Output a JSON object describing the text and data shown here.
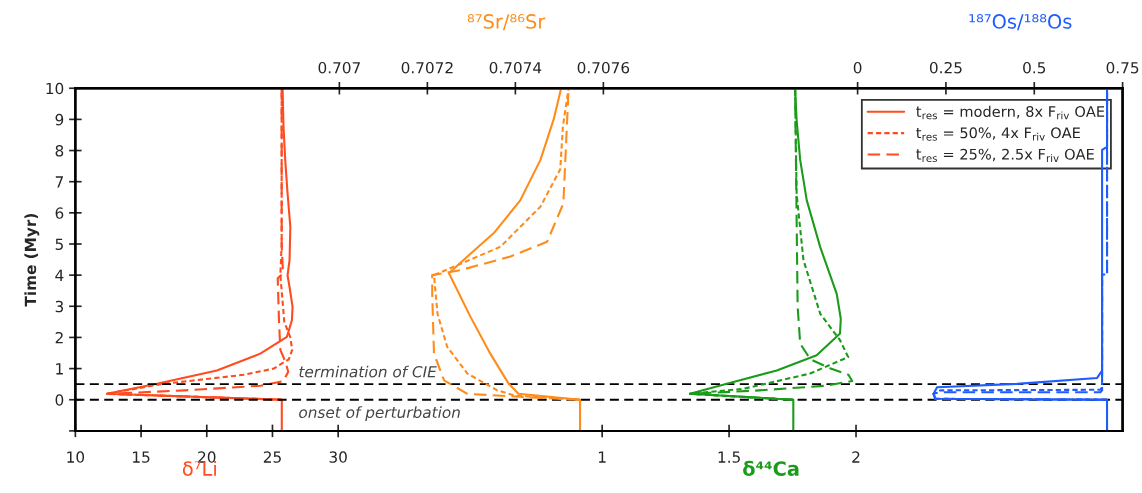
{
  "chart_data": [
    {
      "type": "line",
      "ylabel": "Time (Myr)",
      "ylim": [
        -1,
        10
      ],
      "yticks": [
        {
          "value": -1,
          "label": null
        },
        0,
        1,
        2,
        3,
        4,
        5,
        6,
        7,
        8,
        9,
        10
      ],
      "xlabel": "δ⁷Li",
      "xlim": [
        10,
        89.7
      ],
      "xticks": [
        10,
        15,
        20,
        25,
        30
      ],
      "x2label": "⁸⁷Sr/⁸⁶Sr",
      "x2lim": [
        0.7064,
        0.70878
      ],
      "x2ticks": [
        0.707,
        0.7072,
        0.7074,
        0.7076
      ],
      "grid": false,
      "legend": "top right",
      "ref_lines": [
        {
          "axis": "y",
          "value": 0,
          "label": "onset of perturbation",
          "color": "#000000",
          "line_style": "dashed"
        },
        {
          "axis": "y",
          "value": 0.5,
          "label": "termination of CIE",
          "color": "#000000",
          "line_style": "dashed"
        }
      ],
      "series": [
        {
          "name": "t$_{res}$ = modern, 8x F$_{riv}$ OAE",
          "color": "#ff4b1f",
          "line_style": "solid",
          "x": [
            25.71,
            25.71,
            12.41,
            16.21,
            20.77,
            24.07,
            26.1,
            26.48,
            26.53,
            26.3,
            26.15,
            26.3,
            26.36,
            26.15,
            25.97,
            25.84,
            25.77
          ],
          "values": [
            -1,
            0,
            0.19,
            0.51,
            0.94,
            1.48,
            2.02,
            2.55,
            2.98,
            3.62,
            3.99,
            4.48,
            5.55,
            6.62,
            7.7,
            8.77,
            10
          ]
        },
        {
          "name": "t$_{res}$ = 50%, 4x F$_{riv}$ OAE",
          "color": "#ff4b1f",
          "line_style": "dotted",
          "x": [
            25.71,
            12.41,
            16.5,
            22.8,
            25.1,
            26.25,
            26.5,
            26.36,
            25.9,
            25.7,
            25.6,
            25.7,
            25.7,
            25.7
          ],
          "values": [
            0,
            0.19,
            0.5,
            0.8,
            1.0,
            1.3,
            1.6,
            2.0,
            2.5,
            3.5,
            4.0,
            5,
            7,
            10
          ]
        },
        {
          "name": "t$_{res}$ = 25%, 2.5x F$_{riv}$ OAE",
          "color": "#ff4b1f",
          "line_style": "dashed",
          "x": [
            25.71,
            12.41,
            18.3,
            24.1,
            25.84,
            26.2,
            26.0,
            25.6,
            25.5,
            25.4,
            25.8,
            25.7,
            25.7
          ],
          "values": [
            0,
            0.19,
            0.3,
            0.45,
            0.6,
            0.9,
            1.2,
            1.6,
            2.5,
            3.9,
            4.05,
            5,
            10
          ]
        },
        {
          "axis": "x2",
          "color": "#ff8c1a",
          "line_style": "solid",
          "x": [
            0.707547,
            0.707547,
            0.707407,
            0.707385,
            0.707343,
            0.707298,
            0.707249,
            0.707291,
            0.707351,
            0.707411,
            0.707457,
            0.707487,
            0.707504
          ],
          "values": [
            -1,
            0,
            0.19,
            0.51,
            1.48,
            2.66,
            4.06,
            4.6,
            5.35,
            6.4,
            7.7,
            9,
            10
          ]
        },
        {
          "axis": "x2",
          "color": "#ff8c1a",
          "line_style": "dotted",
          "x": [
            0.707547,
            0.7074,
            0.707359,
            0.707291,
            0.707245,
            0.707223,
            0.707215,
            0.707366,
            0.707457,
            0.707502,
            0.707508,
            0.707521
          ],
          "values": [
            0,
            0.13,
            0.3,
            0.84,
            1.7,
            2.76,
            4.0,
            4.91,
            6.2,
            7.4,
            8.77,
            10
          ]
        },
        {
          "axis": "x2",
          "color": "#ff8c1a",
          "line_style": "dashed",
          "x": [
            0.707547,
            0.707427,
            0.707291,
            0.707238,
            0.707215,
            0.707211,
            0.707211,
            0.707275,
            0.707389,
            0.707472,
            0.707509,
            0.707521
          ],
          "values": [
            0,
            0.08,
            0.19,
            0.62,
            1.48,
            3.4,
            4.0,
            4.16,
            4.6,
            5.07,
            6.3,
            10
          ]
        }
      ]
    },
    {
      "type": "line",
      "ylim": [
        -1,
        10
      ],
      "tick_labels": "x",
      "xlabel": "δ⁴⁴Ca",
      "xlim": [
        -1.075,
        3.05
      ],
      "xticks": [
        1,
        1.5,
        2
      ],
      "x2label": "¹⁸⁷Os/¹⁸⁸Os",
      "x2lim": [
        -2.214,
        0.75
      ],
      "x2ticks": [
        0,
        0.25,
        0.5,
        0.75
      ],
      "grid": false,
      "series": [
        {
          "color": "#1a9c1a",
          "line_style": "solid",
          "x": [
            1.753,
            1.753,
            1.346,
            1.491,
            1.688,
            1.845,
            1.937,
            1.94,
            1.924,
            1.859,
            1.806,
            1.78,
            1.766,
            1.76
          ],
          "values": [
            -1,
            0,
            0.19,
            0.51,
            0.94,
            1.43,
            2.13,
            2.6,
            3.4,
            4.9,
            6.4,
            7.7,
            8.98,
            10
          ]
        },
        {
          "color": "#1a9c1a",
          "line_style": "dotted",
          "x": [
            1.753,
            1.346,
            1.556,
            1.819,
            1.969,
            1.937,
            1.859,
            1.793,
            1.766,
            1.76
          ],
          "values": [
            0,
            0.19,
            0.35,
            0.84,
            1.37,
            1.91,
            2.76,
            4.48,
            6.6,
            10
          ]
        },
        {
          "color": "#1a9c1a",
          "line_style": "dashed",
          "x": [
            1.753,
            1.346,
            1.62,
            1.88,
            1.985,
            1.97,
            1.9,
            1.82,
            1.78,
            1.77,
            1.76
          ],
          "values": [
            0,
            0.19,
            0.3,
            0.45,
            0.6,
            0.8,
            1.0,
            1.3,
            1.8,
            3,
            10
          ]
        },
        {
          "axis": "x2",
          "color": "#1f5cff",
          "line_style": "solid",
          "x": [
            0.706,
            0.706,
            0.22,
            0.215,
            0.225,
            0.451,
            0.678,
            0.692,
            0.692,
            0.706,
            0.706
          ],
          "values": [
            -1,
            0,
            0.03,
            0.19,
            0.4,
            0.51,
            0.7,
            0.94,
            8.02,
            8.12,
            10
          ]
        },
        {
          "axis": "x2",
          "color": "#1f5cff",
          "line_style": "dotted",
          "x": [
            0.706,
            0.22,
            0.215,
            0.234,
            0.687,
            0.692,
            0.692,
            0.706,
            0.706
          ],
          "values": [
            0,
            0.03,
            0.19,
            0.3,
            0.32,
            0.4,
            4.02,
            4.02,
            10
          ]
        },
        {
          "axis": "x2",
          "color": "#1f5cff",
          "line_style": "dashed",
          "x": [
            0.706,
            0.22,
            0.215,
            0.234,
            0.687,
            0.692,
            0.692,
            0.706,
            0.706
          ],
          "values": [
            0,
            0.03,
            0.19,
            0.24,
            0.24,
            0.3,
            4.02,
            4.02,
            10
          ]
        }
      ]
    }
  ]
}
